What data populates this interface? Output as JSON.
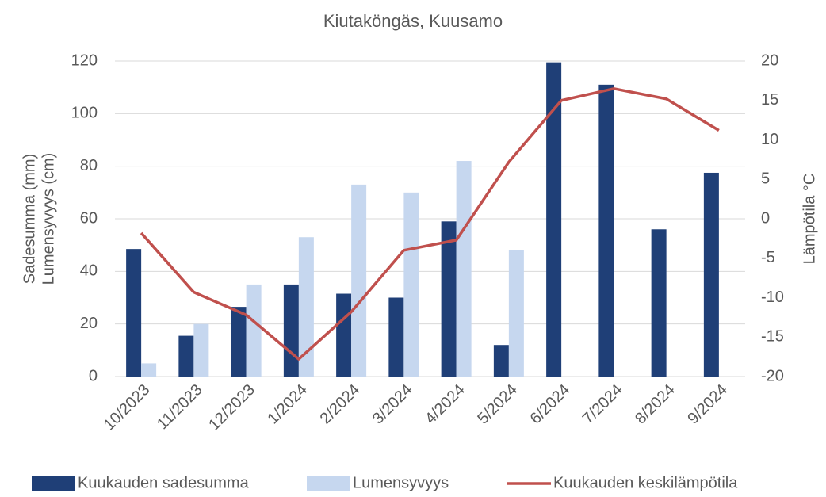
{
  "chart_data": {
    "type": "bar-line",
    "title": "Kiutaköngäs, Kuusamo",
    "ylabel": [
      "Sadesumma (mm)",
      "Lumensyvyys (cm)"
    ],
    "y2label": "Lämpötila °C",
    "categories": [
      "10/2023",
      "11/2023",
      "12/2023",
      "1/2024",
      "2/2024",
      "3/2024",
      "4/2024",
      "5/2024",
      "6/2024",
      "7/2024",
      "8/2024",
      "9/2024"
    ],
    "series": [
      {
        "name": "Kuukauden sadesumma",
        "type": "bar",
        "color": "#1f3f77",
        "values": [
          48.5,
          15.5,
          26.5,
          35,
          31.5,
          30,
          59,
          12,
          119.5,
          111,
          56,
          77.5
        ]
      },
      {
        "name": "Lumensyvyys",
        "type": "bar",
        "color": "#c6d7ef",
        "values": [
          5,
          20,
          35,
          53,
          73,
          70,
          82,
          48,
          null,
          null,
          null,
          null
        ]
      },
      {
        "name": "Kuukauden keskilämpötila",
        "type": "line",
        "axis": "y2",
        "color": "#c0504d",
        "values": [
          -1.8,
          -9.3,
          -12.2,
          -17.8,
          -11.8,
          -4,
          -2.7,
          7.2,
          15,
          16.5,
          15.2,
          11.2
        ]
      }
    ],
    "ylim": [
      0,
      120
    ],
    "yticks": [
      0,
      20,
      40,
      60,
      80,
      100,
      120
    ],
    "y2lim": [
      -20,
      20
    ],
    "y2ticks": [
      -20,
      -15,
      -10,
      -5,
      0,
      5,
      10,
      15,
      20
    ],
    "grid": true,
    "legend": "bottom"
  }
}
